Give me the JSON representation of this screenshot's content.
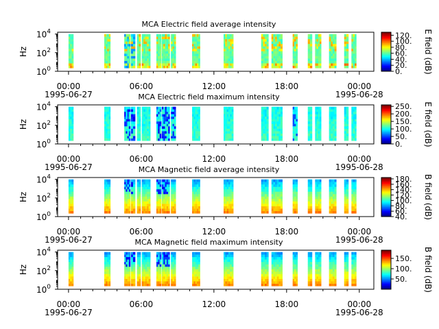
{
  "chart_data": [
    {
      "type": "heatmap",
      "title": "MCA  Electric field average intensity",
      "ylabel": "Hz",
      "colorbar_label": "E field (dB)",
      "colorbar_ticks": [
        "0.",
        "20.",
        "40.",
        "60.",
        "80.",
        "100.",
        "120."
      ],
      "clim": [
        0,
        130
      ],
      "palette": "hot-low",
      "ymin_label": "10",
      "ylim_exp": [
        0,
        4.2
      ]
    },
    {
      "type": "heatmap",
      "title": "MCA  Electric field maximum intensity",
      "ylabel": "Hz",
      "colorbar_label": "E field (dB)",
      "colorbar_ticks": [
        "0.",
        "50.",
        "100.",
        "150.",
        "200.",
        "250."
      ],
      "clim": [
        0,
        260
      ],
      "palette": "cool-low",
      "ylim_exp": [
        0,
        4.2
      ]
    },
    {
      "type": "heatmap",
      "title": "MCA  Magnetic field average intensity",
      "ylabel": "Hz",
      "colorbar_label": "B field (dB)",
      "colorbar_ticks": [
        "40.",
        "60.",
        "80.",
        "100.",
        "120.",
        "140.",
        "160.",
        "180."
      ],
      "clim": [
        40,
        185
      ],
      "palette": "hot-low",
      "ylim_exp": [
        0,
        4.2
      ]
    },
    {
      "type": "heatmap",
      "title": "MCA  Magnetic field maximum intensity",
      "ylabel": "Hz",
      "colorbar_label": "B field (dB)",
      "colorbar_ticks": [
        "50.",
        "100.",
        "150."
      ],
      "clim": [
        0,
        190
      ],
      "palette": "hot-low",
      "ylim_exp": [
        0,
        4.2
      ]
    }
  ],
  "shared_axes": {
    "x_ticks": [
      "00:00",
      "06:00",
      "12:00",
      "18:00",
      "00:00"
    ],
    "x_tick_hours": [
      0,
      6,
      12,
      18,
      24
    ],
    "x_start_date": "1995-06-27",
    "x_end_date": "1995-06-28",
    "xlim_hours": [
      -0.9,
      25.2
    ],
    "y_ticks": [
      {
        "base": "10",
        "exp": "0",
        "value_exp": 0
      },
      {
        "base": "10",
        "exp": "2",
        "value_exp": 2
      },
      {
        "base": "10",
        "exp": "4",
        "value_exp": 4
      }
    ]
  },
  "data_intervals_hours": [
    [
      0.0,
      0.4
    ],
    [
      2.95,
      3.45
    ],
    [
      4.6,
      5.1
    ],
    [
      5.15,
      5.5
    ],
    [
      5.65,
      5.95
    ],
    [
      6.05,
      6.75
    ],
    [
      7.25,
      7.65
    ],
    [
      7.7,
      8.35
    ],
    [
      8.45,
      8.85
    ],
    [
      10.2,
      10.85
    ],
    [
      12.8,
      13.6
    ],
    [
      15.9,
      16.5
    ],
    [
      16.75,
      17.65
    ],
    [
      18.5,
      18.9
    ],
    [
      19.75,
      20.1
    ],
    [
      20.35,
      20.85
    ],
    [
      21.5,
      22.1
    ],
    [
      22.75,
      23.1
    ],
    [
      23.35,
      23.75
    ]
  ]
}
